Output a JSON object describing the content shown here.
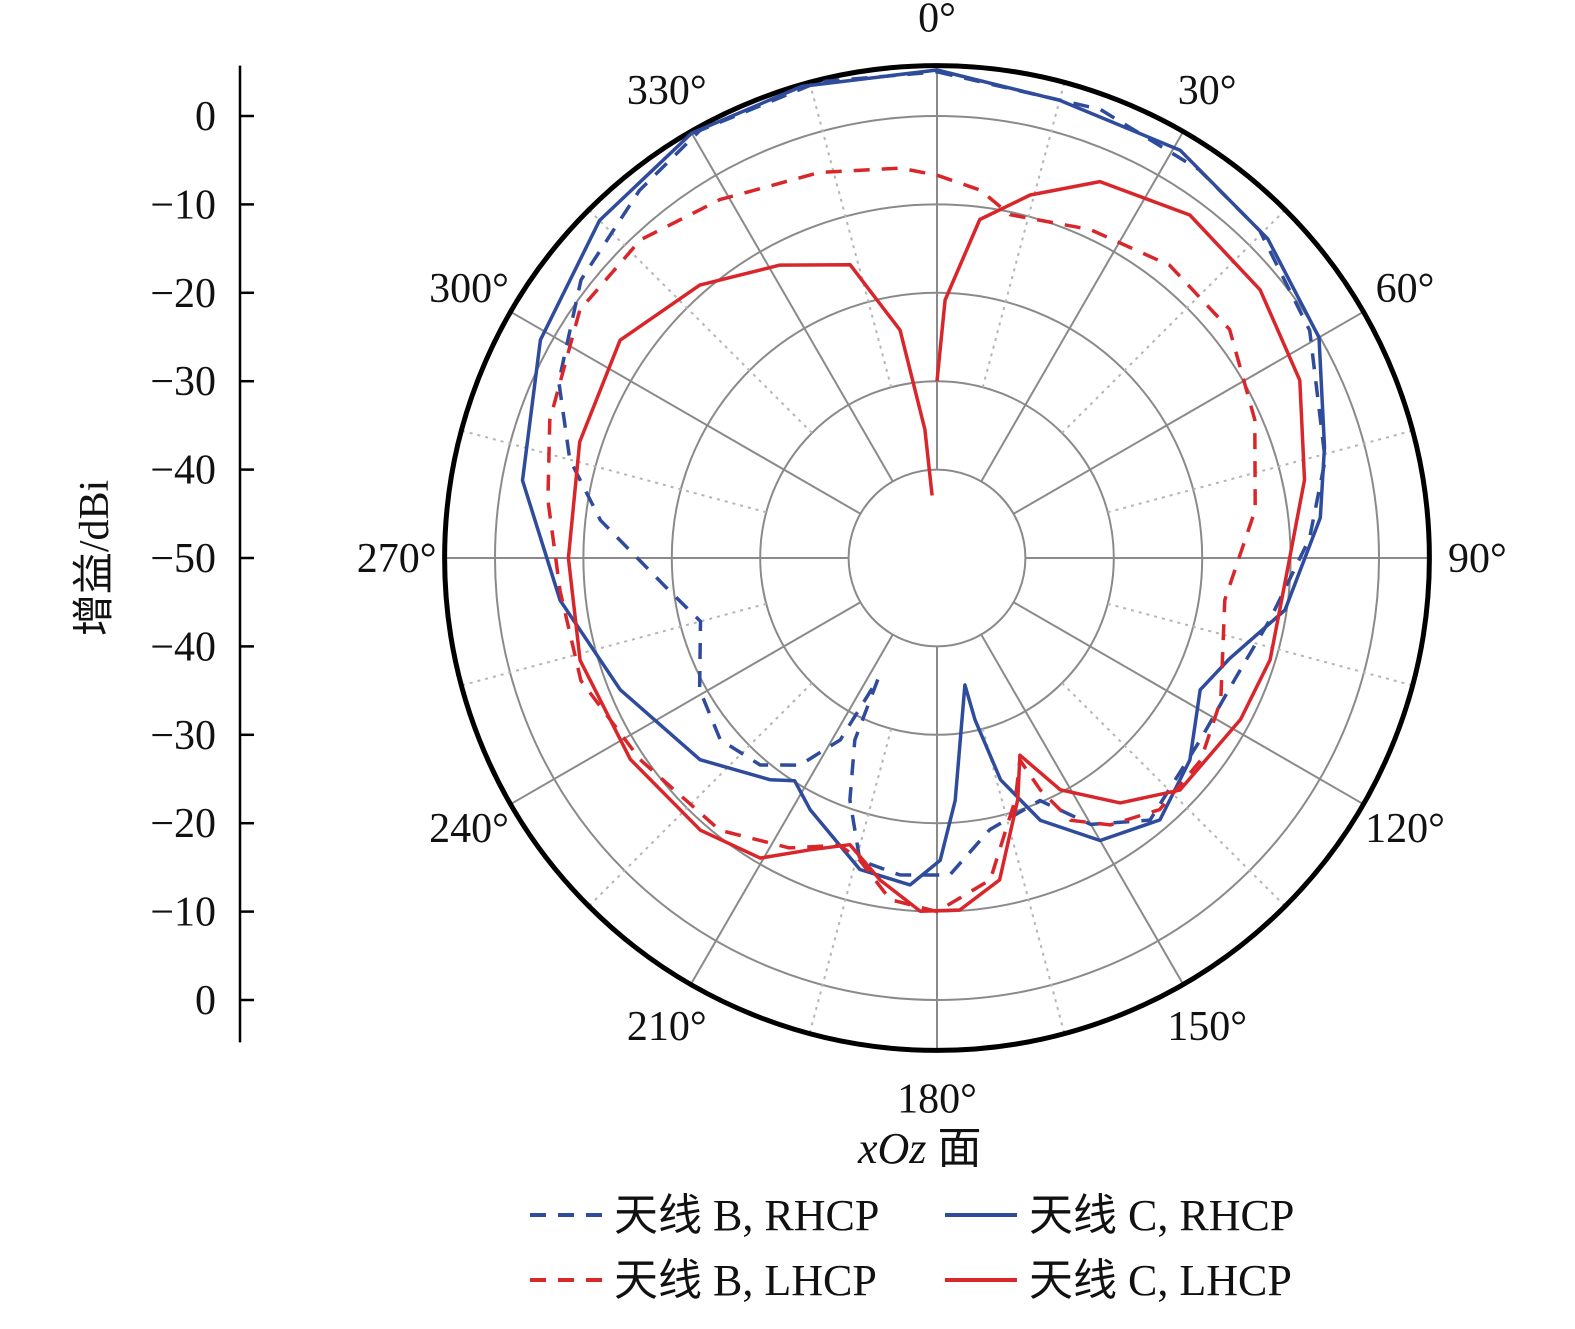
{
  "chart_data": {
    "type": "polar-line",
    "title": "xOz 面",
    "title_italic_part": "xOz",
    "title_rest": " 面",
    "ylabel": "增益/dBi",
    "radial_range": [
      -50,
      5.7
    ],
    "radial_ticks": [
      0,
      -10,
      -20,
      -30,
      -40,
      -50,
      -40,
      -30,
      -20,
      -10,
      0
    ],
    "radial_tick_labels": [
      "0",
      "−10",
      "−20",
      "−30",
      "−40",
      "−50",
      "−40",
      "−30",
      "−20",
      "−10",
      "0"
    ],
    "angle_ticks": [
      0,
      30,
      60,
      90,
      120,
      150,
      180,
      210,
      240,
      270,
      300,
      330
    ],
    "angle_tick_labels": [
      "0°",
      "30°",
      "60°",
      "90°",
      "120°",
      "150°",
      "180°",
      "210°",
      "240°",
      "270°",
      "300°",
      "330°"
    ],
    "grid": true,
    "legend_position": "bottom",
    "colors": {
      "blue": "#2f4b9c",
      "red": "#d8262b"
    },
    "series": [
      {
        "name": "天线 B, RHCP",
        "color": "#2f4b9c",
        "dash": true,
        "angles": [
          0,
          20,
          34,
          44.6,
          58.6,
          75.8,
          87,
          100.5,
          112,
          124.7,
          140.9,
          150,
          157,
          169,
          177.7,
          186.7,
          194.3,
          199.8,
          204.3,
          206,
          208,
          213.5,
          220.5,
          230,
          241,
          255,
          264,
          276.4,
          285,
          295,
          308,
          321,
          331,
          346,
          360
        ],
        "gain": [
          5,
          4,
          3,
          2,
          -0.6,
          -4.7,
          -7.8,
          -11.7,
          -13.6,
          -13.8,
          -11.8,
          -15.2,
          -20.2,
          -18.7,
          -14.1,
          -13.9,
          -14.7,
          -20.9,
          -27.4,
          -34.8,
          -26.7,
          -21.9,
          -19.2,
          -18,
          -19.3,
          -22.3,
          -19.1,
          -11.7,
          -7,
          -2.8,
          1.1,
          3.5,
          5.3,
          5.5,
          5
        ]
      },
      {
        "name": "天线 C, RHCP",
        "color": "#2f4b9c",
        "dash": false,
        "angles": [
          0,
          15,
          30.8,
          46,
          60,
          74,
          84,
          98.5,
          109,
          116.6,
          128.6,
          139.6,
          150,
          158.5,
          164,
          166.8,
          167.6,
          175.7,
          179.4,
          184.7,
          193.9,
          206.7,
          212.6,
          217,
          229.6,
          247.4,
          263.6,
          280.6,
          298.8,
          315,
          330,
          344,
          360
        ],
        "gain": [
          5.2,
          3.6,
          3.7,
          2,
          -0.1,
          -4.4,
          -6.4,
          -10.2,
          -15,
          -16.7,
          -13.4,
          -11.1,
          -13.1,
          -18.1,
          -23.9,
          -31.2,
          -35.3,
          -22.5,
          -15.8,
          -12.9,
          -13.7,
          -18.1,
          -20.1,
          -18.6,
          -14.8,
          -11.2,
          -7.1,
          -2.3,
          1.2,
          4,
          5.5,
          5.5,
          5.2
        ]
      },
      {
        "name": "天线 B, LHCP",
        "color": "#d8262b",
        "dash": true,
        "angles": [
          0,
          6.7,
          12,
          25,
          38.5,
          52,
          66.5,
          81.4,
          98.3,
          116.6,
          127.5,
          138.5,
          147,
          153,
          156,
          157.7,
          162,
          170.6,
          180,
          187.8,
          194.3,
          198.7,
          207,
          218.6,
          235.8,
          251,
          265,
          278.5,
          289.6,
          304.8,
          317,
          328.8,
          343,
          354.6,
          360
        ],
        "gain": [
          -6.7,
          -8.1,
          -10.3,
          -9,
          -7.7,
          -8,
          -10.8,
          -13.6,
          -17.1,
          -14.1,
          -12.4,
          -12,
          -14,
          -16.7,
          -21.3,
          -25.3,
          -21.3,
          -13.1,
          -10,
          -11,
          -14.7,
          -15.7,
          -13.2,
          -10.6,
          -9.4,
          -7.4,
          -7.2,
          -5.5,
          -3.5,
          -0.8,
          -0.8,
          -2.6,
          -4.4,
          -5.7,
          -6.7
        ]
      },
      {
        "name": "天线 C, LHCP",
        "color": "#d8262b",
        "dash": false,
        "angles": [
          0,
          1.8,
          7.2,
          14.4,
          23.4,
          36.4,
          50.3,
          63.9,
          78,
          93.6,
          107,
          118,
          133.7,
          143.2,
          152,
          157.2,
          161.5,
          169,
          176.3,
          182.7,
          190,
          196.9,
          203.5,
          210.5,
          221,
          236.7,
          254,
          270,
          288,
          304.5,
          319,
          331.8,
          343.5,
          350.8,
          354.6,
          355.5
        ],
        "gain": [
          -30,
          -20.8,
          -11.4,
          -7.6,
          -3.6,
          -1.8,
          -2.5,
          -4.3,
          -7.5,
          -10.5,
          -10.6,
          -11.1,
          -12,
          -15.4,
          -20.3,
          -25.8,
          -21.2,
          -12.9,
          -10.1,
          -10,
          -13,
          -16.1,
          -14,
          -10.6,
          -9.2,
          -8.5,
          -8,
          -8.3,
          -7.5,
          -6.5,
          -9.1,
          -12.4,
          -15.4,
          -23.9,
          -35.4,
          -42.9
        ]
      }
    ]
  }
}
